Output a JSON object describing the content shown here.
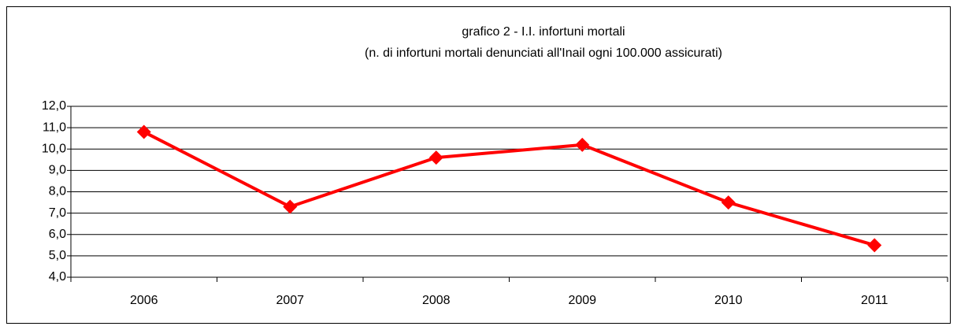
{
  "chart_data": {
    "type": "line",
    "title": "grafico 2 - I.I. infortuni mortali",
    "subtitle": "(n. di infortuni mortali denunciati all'Inail ogni 100.000 assicurati)",
    "categories": [
      "2006",
      "2007",
      "2008",
      "2009",
      "2010",
      "2011"
    ],
    "values": [
      10.8,
      7.3,
      9.6,
      10.2,
      7.5,
      5.5
    ],
    "color": "#ff0000",
    "ylim": [
      4,
      12
    ],
    "yticks": [
      {
        "value": 4,
        "label": "4,0"
      },
      {
        "value": 5,
        "label": "5,0"
      },
      {
        "value": 6,
        "label": "6,0"
      },
      {
        "value": 7,
        "label": "7,0"
      },
      {
        "value": 8,
        "label": "8,0"
      },
      {
        "value": 9,
        "label": "9,0"
      },
      {
        "value": 10,
        "label": "10,0"
      },
      {
        "value": 11,
        "label": "11,0"
      },
      {
        "value": 12,
        "label": "12,0"
      }
    ],
    "grid": true
  }
}
